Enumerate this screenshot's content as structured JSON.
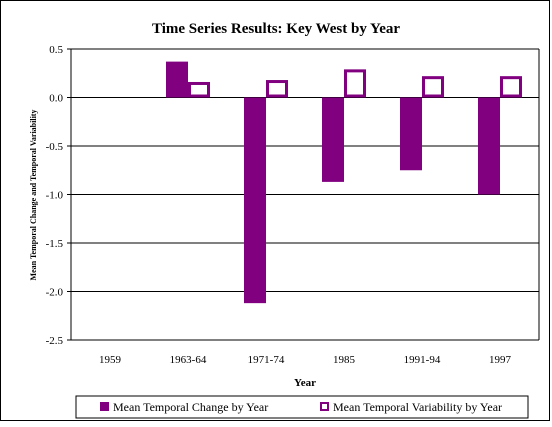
{
  "chart_data": {
    "type": "bar",
    "title": "Time Series Results:  Key West by Year",
    "xlabel": "Year",
    "ylabel": "Mean Temporal Change and Temporal Variability",
    "categories": [
      "1959",
      "1963-64",
      "1971-74",
      "1985",
      "1991-94",
      "1997"
    ],
    "ylim": [
      -2.5,
      0.5
    ],
    "yticks": [
      "0.5",
      "0.0",
      "-0.5",
      "-1.0",
      "-1.5",
      "-2.0",
      "-2.5"
    ],
    "ytick_values": [
      0.5,
      0.0,
      -0.5,
      -1.0,
      -1.5,
      -2.0,
      -2.5
    ],
    "grid": true,
    "legend_position": "bottom",
    "series": [
      {
        "name": "Mean Temporal Change by Year",
        "values": [
          null,
          0.37,
          -2.12,
          -0.87,
          -0.75,
          -1.0
        ],
        "color": "#800080",
        "style": "filled"
      },
      {
        "name": "Mean Temporal Variability by Year",
        "values": [
          null,
          0.16,
          0.18,
          0.29,
          0.22,
          0.22
        ],
        "color": "#800080",
        "style": "outline"
      }
    ]
  }
}
